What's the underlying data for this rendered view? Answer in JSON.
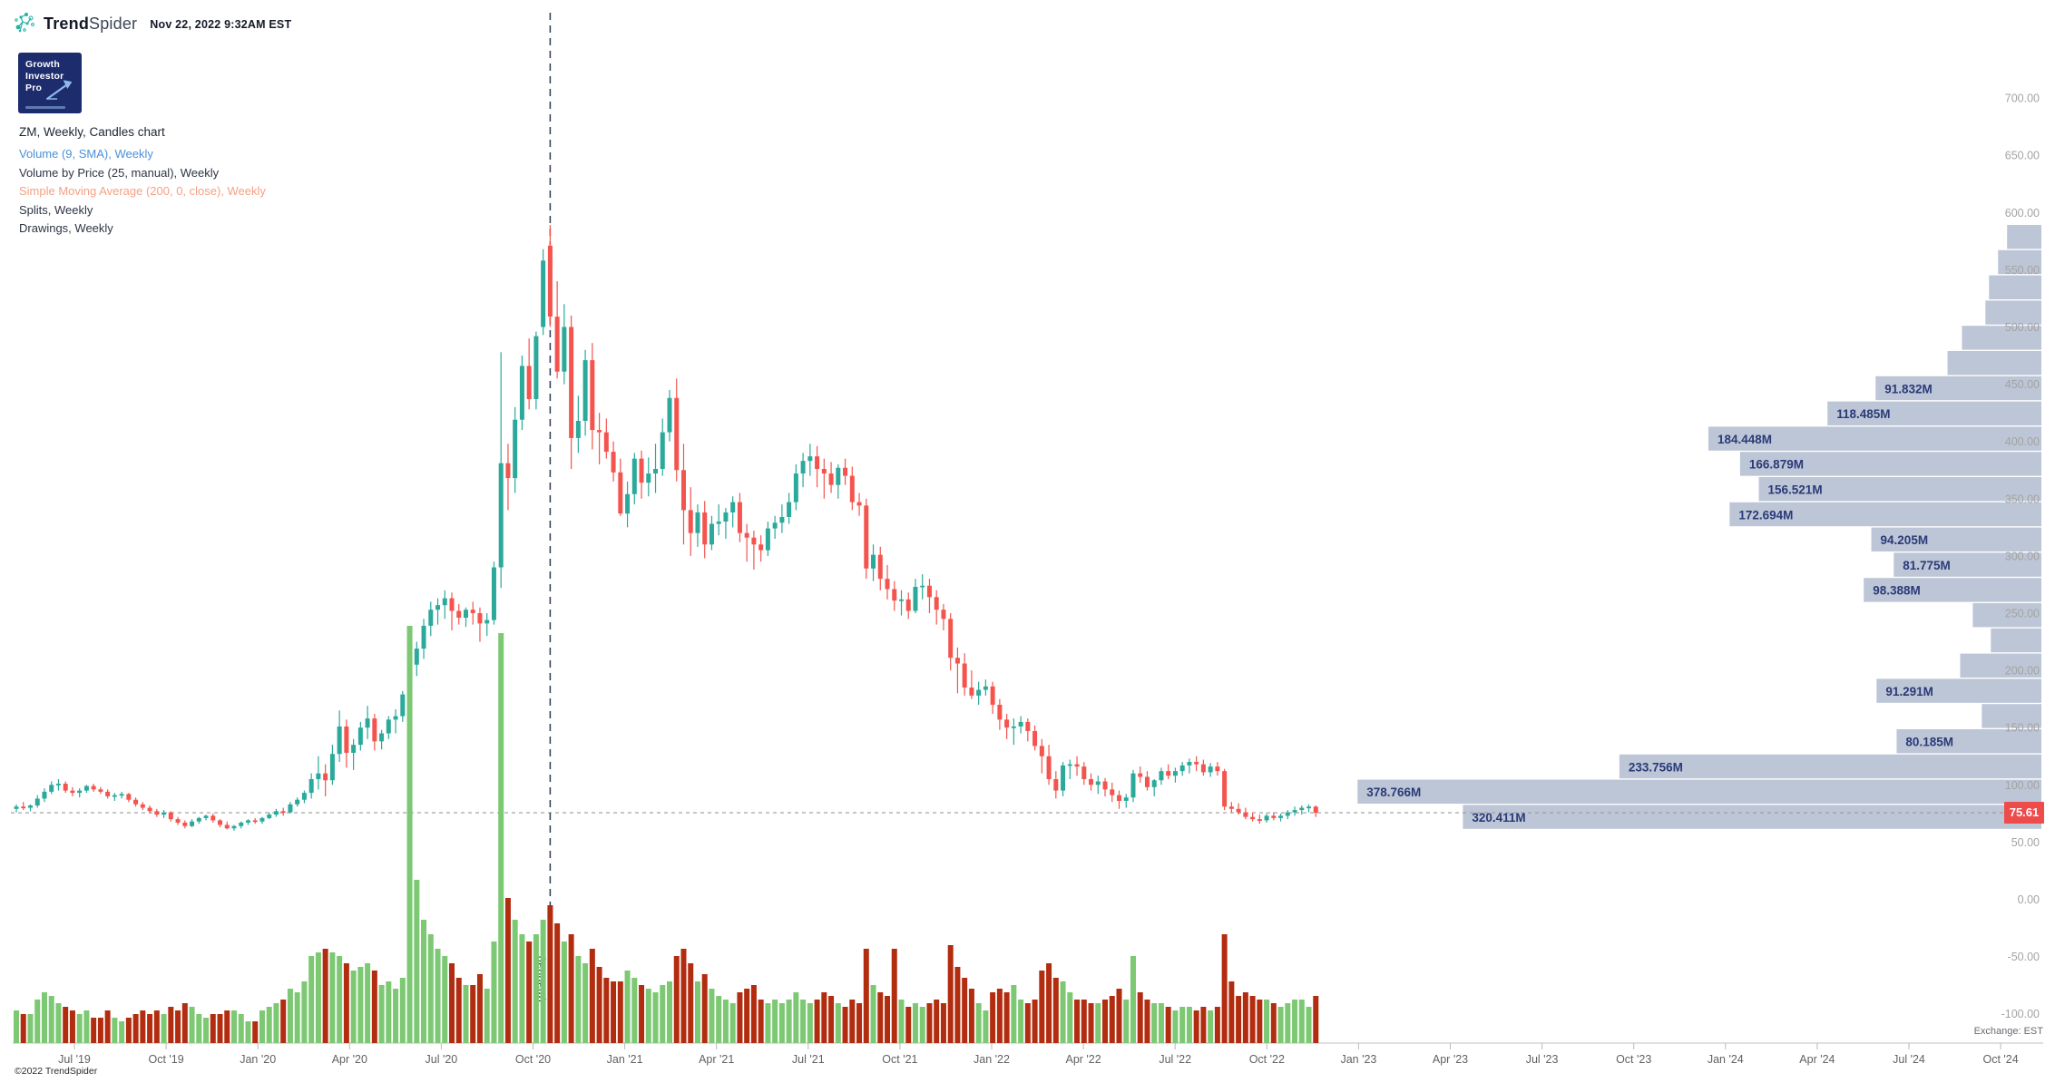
{
  "header": {
    "brand_bold": "Trend",
    "brand_light": "Spider",
    "datetime": "Nov 22, 2022 9:32AM EST"
  },
  "badge": {
    "line1": "Growth",
    "line2": "Investor",
    "line3": "Pro"
  },
  "legend": {
    "title": "ZM, Weekly, Candles chart",
    "items": [
      {
        "text": "Volume (9, SMA), Weekly",
        "color": "#4a90d8"
      },
      {
        "text": "Volume by Price (25, manual), Weekly",
        "color": "#2e3444"
      },
      {
        "text": "Simple Moving Average (200, 0, close), Weekly",
        "color": "#f5a183"
      },
      {
        "text": "Splits, Weekly",
        "color": "#2e3444"
      },
      {
        "text": "Drawings, Weekly",
        "color": "#2e3444"
      }
    ]
  },
  "footer": {
    "copyright": "©2022 TrendSpider",
    "exchange": "Exchange: EST"
  },
  "chart_data": {
    "type": "candlestick",
    "symbol": "ZM",
    "timeframe": "Weekly",
    "start_week": "2019-05-06",
    "current_price": 75.61,
    "current_price_label": "75.61",
    "colors": {
      "candle_up": "#2ba99b",
      "candle_down": "#f4544e",
      "volume_up": "#7cc873",
      "volume_down": "#b22c10",
      "profile_bar": "#b8c2d3",
      "profile_label": "#2b3a78",
      "price_line_tag": "#ee4b4b",
      "vline": "#2c3a5c",
      "axis_text": "#a3a3a3",
      "x_axis_text": "#616161"
    },
    "price_axis": {
      "values": [
        700,
        650,
        600,
        550,
        500,
        450,
        400,
        350,
        300,
        250,
        200,
        150,
        100,
        50,
        0,
        -50,
        -100
      ],
      "labels": [
        "700.00",
        "650.00",
        "600.00",
        "550.00",
        "500.00",
        "450.00",
        "400.00",
        "350.00",
        "300.00",
        "250.00",
        "200.00",
        "150.00",
        "100.00",
        "50.00",
        "0.00",
        "-50.00",
        "-100.00"
      ]
    },
    "x_axis": {
      "labels": [
        "Jul '19",
        "Oct '19",
        "Jan '20",
        "Apr '20",
        "Jul '20",
        "Oct '20",
        "Jan '21",
        "Apr '21",
        "Jul '21",
        "Oct '21",
        "Jan '22",
        "Apr '22",
        "Jul '22",
        "Oct '22",
        "Jan '23",
        "Apr '23",
        "Jul '23",
        "Oct '23",
        "Jan '24",
        "Apr '24",
        "Jul '24",
        "Oct '24"
      ]
    },
    "annotations": {
      "vline_week_index": 76,
      "vline_label": "(manual)",
      "current_price_dashed_line": true
    },
    "volume_profile": {
      "unit": "M",
      "price_top_first_row": 589,
      "price_per_row": 22,
      "rows": [
        {
          "volume": 19,
          "label": ""
        },
        {
          "volume": 24,
          "label": ""
        },
        {
          "volume": 29,
          "label": ""
        },
        {
          "volume": 31,
          "label": ""
        },
        {
          "volume": 44,
          "label": ""
        },
        {
          "volume": 52,
          "label": ""
        },
        {
          "volume": 91.832,
          "label": "91.832M"
        },
        {
          "volume": 118.485,
          "label": "118.485M"
        },
        {
          "volume": 184.448,
          "label": "184.448M"
        },
        {
          "volume": 166.879,
          "label": "166.879M"
        },
        {
          "volume": 156.521,
          "label": "156.521M"
        },
        {
          "volume": 172.694,
          "label": "172.694M"
        },
        {
          "volume": 94.205,
          "label": "94.205M"
        },
        {
          "volume": 81.775,
          "label": "81.775M"
        },
        {
          "volume": 98.388,
          "label": "98.388M"
        },
        {
          "volume": 38,
          "label": ""
        },
        {
          "volume": 28,
          "label": ""
        },
        {
          "volume": 45,
          "label": ""
        },
        {
          "volume": 91.291,
          "label": "91.291M"
        },
        {
          "volume": 33,
          "label": ""
        },
        {
          "volume": 80.185,
          "label": "80.185M"
        },
        {
          "volume": 233.756,
          "label": "233.756M"
        },
        {
          "volume": 378.766,
          "label": "378.766M"
        },
        {
          "volume": 320.411,
          "label": "320.411M"
        }
      ]
    },
    "candles": [
      [
        79,
        83,
        76,
        81,
        9
      ],
      [
        81,
        85,
        78,
        80,
        8
      ],
      [
        80,
        83,
        77,
        82,
        8
      ],
      [
        82,
        91,
        80,
        88,
        12
      ],
      [
        88,
        97,
        85,
        94,
        14
      ],
      [
        94,
        103,
        92,
        100,
        13
      ],
      [
        100,
        105,
        95,
        101,
        11
      ],
      [
        101,
        103,
        93,
        95,
        10
      ],
      [
        95,
        98,
        90,
        93,
        9
      ],
      [
        93,
        97,
        89,
        95,
        8
      ],
      [
        95,
        100,
        93,
        99,
        9
      ],
      [
        99,
        101,
        94,
        96,
        7
      ],
      [
        96,
        98,
        92,
        94,
        7
      ],
      [
        94,
        96,
        88,
        90,
        9
      ],
      [
        90,
        93,
        86,
        91,
        7
      ],
      [
        91,
        94,
        88,
        92,
        6
      ],
      [
        92,
        93,
        85,
        87,
        7
      ],
      [
        87,
        89,
        81,
        83,
        8
      ],
      [
        83,
        85,
        78,
        80,
        9
      ],
      [
        80,
        82,
        75,
        77,
        8
      ],
      [
        77,
        79,
        72,
        74,
        9
      ],
      [
        74,
        78,
        71,
        76,
        8
      ],
      [
        76,
        77,
        68,
        70,
        10
      ],
      [
        70,
        72,
        65,
        67,
        9
      ],
      [
        67,
        69,
        62,
        64,
        11
      ],
      [
        64,
        70,
        63,
        68,
        10
      ],
      [
        68,
        72,
        66,
        71,
        8
      ],
      [
        71,
        74,
        69,
        73,
        7
      ],
      [
        73,
        75,
        67,
        69,
        8
      ],
      [
        69,
        70,
        63,
        65,
        8
      ],
      [
        65,
        68,
        61,
        62,
        9
      ],
      [
        62,
        65,
        60,
        64,
        9
      ],
      [
        64,
        68,
        62,
        67,
        8
      ],
      [
        67,
        70,
        65,
        69,
        6
      ],
      [
        69,
        71,
        66,
        68,
        6
      ],
      [
        68,
        72,
        66,
        71,
        9
      ],
      [
        71,
        76,
        70,
        74,
        10
      ],
      [
        74,
        79,
        72,
        77,
        11
      ],
      [
        77,
        80,
        73,
        76,
        12
      ],
      [
        76,
        85,
        75,
        83,
        15
      ],
      [
        83,
        89,
        81,
        87,
        14
      ],
      [
        87,
        95,
        84,
        93,
        17
      ],
      [
        93,
        110,
        88,
        105,
        24
      ],
      [
        105,
        125,
        96,
        110,
        25
      ],
      [
        110,
        118,
        90,
        104,
        26
      ],
      [
        104,
        135,
        100,
        127,
        25
      ],
      [
        127,
        165,
        120,
        151,
        24
      ],
      [
        151,
        157,
        115,
        128,
        22
      ],
      [
        128,
        140,
        113,
        135,
        20
      ],
      [
        135,
        155,
        130,
        150,
        21
      ],
      [
        150,
        169,
        140,
        158,
        22
      ],
      [
        158,
        162,
        130,
        138,
        20
      ],
      [
        138,
        148,
        131,
        145,
        16
      ],
      [
        145,
        160,
        140,
        157,
        17
      ],
      [
        157,
        166,
        145,
        160,
        15
      ],
      [
        160,
        182,
        155,
        179,
        18
      ],
      [
        179,
        208,
        172,
        205,
        115
      ],
      [
        205,
        225,
        195,
        219,
        45
      ],
      [
        219,
        245,
        210,
        239,
        34
      ],
      [
        239,
        260,
        230,
        253,
        30
      ],
      [
        253,
        263,
        240,
        257,
        26
      ],
      [
        257,
        270,
        245,
        263,
        24
      ],
      [
        263,
        268,
        235,
        252,
        22
      ],
      [
        252,
        258,
        240,
        246,
        18
      ],
      [
        246,
        255,
        238,
        253,
        16
      ],
      [
        253,
        260,
        240,
        250,
        16
      ],
      [
        250,
        255,
        225,
        241,
        19
      ],
      [
        241,
        250,
        230,
        244,
        15
      ],
      [
        244,
        295,
        240,
        290,
        28
      ],
      [
        290,
        478,
        272,
        381,
        113
      ],
      [
        381,
        398,
        340,
        368,
        40
      ],
      [
        368,
        430,
        355,
        419,
        34
      ],
      [
        419,
        475,
        410,
        466,
        30
      ],
      [
        466,
        490,
        428,
        437,
        28
      ],
      [
        437,
        496,
        428,
        492,
        30
      ],
      [
        500,
        568,
        493,
        558,
        34
      ],
      [
        571,
        589,
        500,
        509,
        38
      ],
      [
        509,
        540,
        455,
        461,
        33
      ],
      [
        461,
        520,
        450,
        500,
        28
      ],
      [
        500,
        510,
        376,
        403,
        30
      ],
      [
        403,
        440,
        390,
        418,
        24
      ],
      [
        418,
        480,
        405,
        471,
        22
      ],
      [
        471,
        486,
        393,
        410,
        26
      ],
      [
        410,
        425,
        380,
        408,
        21
      ],
      [
        408,
        420,
        385,
        391,
        18
      ],
      [
        391,
        400,
        365,
        373,
        17
      ],
      [
        373,
        385,
        335,
        337,
        17
      ],
      [
        337,
        365,
        325,
        354,
        20
      ],
      [
        354,
        390,
        345,
        385,
        18
      ],
      [
        385,
        392,
        350,
        364,
        16
      ],
      [
        364,
        386,
        352,
        372,
        15
      ],
      [
        372,
        398,
        355,
        376,
        14
      ],
      [
        376,
        420,
        370,
        408,
        16
      ],
      [
        408,
        445,
        400,
        438,
        17
      ],
      [
        438,
        455,
        365,
        375,
        24
      ],
      [
        375,
        398,
        310,
        340,
        26
      ],
      [
        340,
        360,
        300,
        320,
        22
      ],
      [
        320,
        345,
        308,
        338,
        17
      ],
      [
        338,
        348,
        298,
        310,
        19
      ],
      [
        310,
        335,
        305,
        328,
        15
      ],
      [
        328,
        345,
        318,
        330,
        13
      ],
      [
        330,
        342,
        315,
        338,
        12
      ],
      [
        338,
        352,
        325,
        347,
        11
      ],
      [
        347,
        355,
        312,
        320,
        14
      ],
      [
        320,
        328,
        295,
        316,
        15
      ],
      [
        316,
        322,
        288,
        310,
        16
      ],
      [
        310,
        318,
        295,
        305,
        12
      ],
      [
        305,
        330,
        300,
        324,
        11
      ],
      [
        324,
        335,
        315,
        329,
        12
      ],
      [
        329,
        345,
        320,
        334,
        11
      ],
      [
        334,
        355,
        328,
        347,
        12
      ],
      [
        347,
        380,
        340,
        372,
        14
      ],
      [
        372,
        390,
        360,
        383,
        12
      ],
      [
        383,
        398,
        370,
        387,
        11
      ],
      [
        387,
        396,
        360,
        376,
        12
      ],
      [
        376,
        385,
        350,
        372,
        14
      ],
      [
        372,
        382,
        355,
        362,
        13
      ],
      [
        362,
        380,
        350,
        377,
        11
      ],
      [
        377,
        385,
        362,
        370,
        10
      ],
      [
        370,
        378,
        340,
        347,
        12
      ],
      [
        347,
        355,
        335,
        344,
        11
      ],
      [
        344,
        350,
        280,
        289,
        26
      ],
      [
        289,
        310,
        278,
        301,
        16
      ],
      [
        301,
        308,
        270,
        280,
        14
      ],
      [
        280,
        292,
        262,
        271,
        13
      ],
      [
        271,
        278,
        252,
        261,
        26
      ],
      [
        261,
        270,
        248,
        262,
        12
      ],
      [
        262,
        268,
        245,
        252,
        10
      ],
      [
        252,
        280,
        250,
        273,
        11
      ],
      [
        273,
        284,
        262,
        274,
        10
      ],
      [
        274,
        280,
        250,
        264,
        11
      ],
      [
        264,
        270,
        240,
        253,
        12
      ],
      [
        253,
        258,
        235,
        245,
        11
      ],
      [
        245,
        250,
        200,
        211,
        27
      ],
      [
        211,
        220,
        180,
        206,
        21
      ],
      [
        206,
        215,
        178,
        185,
        18
      ],
      [
        185,
        200,
        175,
        178,
        15
      ],
      [
        178,
        190,
        170,
        183,
        11
      ],
      [
        183,
        192,
        178,
        186,
        9
      ],
      [
        186,
        190,
        162,
        170,
        14
      ],
      [
        170,
        175,
        148,
        157,
        15
      ],
      [
        157,
        162,
        140,
        150,
        14
      ],
      [
        150,
        158,
        135,
        151,
        16
      ],
      [
        151,
        160,
        145,
        155,
        12
      ],
      [
        155,
        158,
        138,
        147,
        11
      ],
      [
        147,
        152,
        130,
        134,
        12
      ],
      [
        134,
        140,
        110,
        125,
        20
      ],
      [
        125,
        135,
        100,
        105,
        22
      ],
      [
        105,
        112,
        88,
        95,
        18
      ],
      [
        95,
        120,
        90,
        117,
        17
      ],
      [
        117,
        122,
        105,
        118,
        14
      ],
      [
        118,
        125,
        108,
        116,
        12
      ],
      [
        116,
        120,
        100,
        105,
        12
      ],
      [
        105,
        110,
        95,
        100,
        11
      ],
      [
        100,
        108,
        92,
        103,
        11
      ],
      [
        103,
        106,
        90,
        96,
        12
      ],
      [
        96,
        102,
        85,
        91,
        13
      ],
      [
        91,
        95,
        79,
        86,
        15
      ],
      [
        86,
        92,
        80,
        89,
        12
      ],
      [
        89,
        113,
        85,
        110,
        24
      ],
      [
        110,
        116,
        102,
        107,
        14
      ],
      [
        107,
        112,
        95,
        98,
        12
      ],
      [
        98,
        105,
        90,
        104,
        11
      ],
      [
        104,
        115,
        100,
        112,
        11
      ],
      [
        112,
        118,
        105,
        108,
        10
      ],
      [
        108,
        115,
        102,
        112,
        9
      ],
      [
        112,
        120,
        108,
        117,
        10
      ],
      [
        117,
        123,
        110,
        120,
        10
      ],
      [
        120,
        125,
        112,
        118,
        9
      ],
      [
        118,
        122,
        108,
        111,
        10
      ],
      [
        111,
        119,
        107,
        116,
        9
      ],
      [
        116,
        120,
        108,
        112,
        10
      ],
      [
        112,
        114,
        78,
        81,
        30
      ],
      [
        81,
        85,
        76,
        79,
        17
      ],
      [
        79,
        84,
        74,
        76,
        13
      ],
      [
        76,
        80,
        70,
        72,
        14
      ],
      [
        72,
        76,
        68,
        70,
        13
      ],
      [
        70,
        74,
        66,
        69,
        12
      ],
      [
        69,
        75,
        67,
        73,
        12
      ],
      [
        73,
        76,
        69,
        71,
        11
      ],
      [
        71,
        75,
        68,
        73,
        10
      ],
      [
        73,
        78,
        70,
        76,
        11
      ],
      [
        76,
        81,
        73,
        78,
        12
      ],
      [
        78,
        82,
        74,
        80,
        12
      ],
      [
        80,
        83,
        76,
        81,
        10
      ],
      [
        81,
        82,
        72,
        75.61,
        13
      ]
    ]
  }
}
